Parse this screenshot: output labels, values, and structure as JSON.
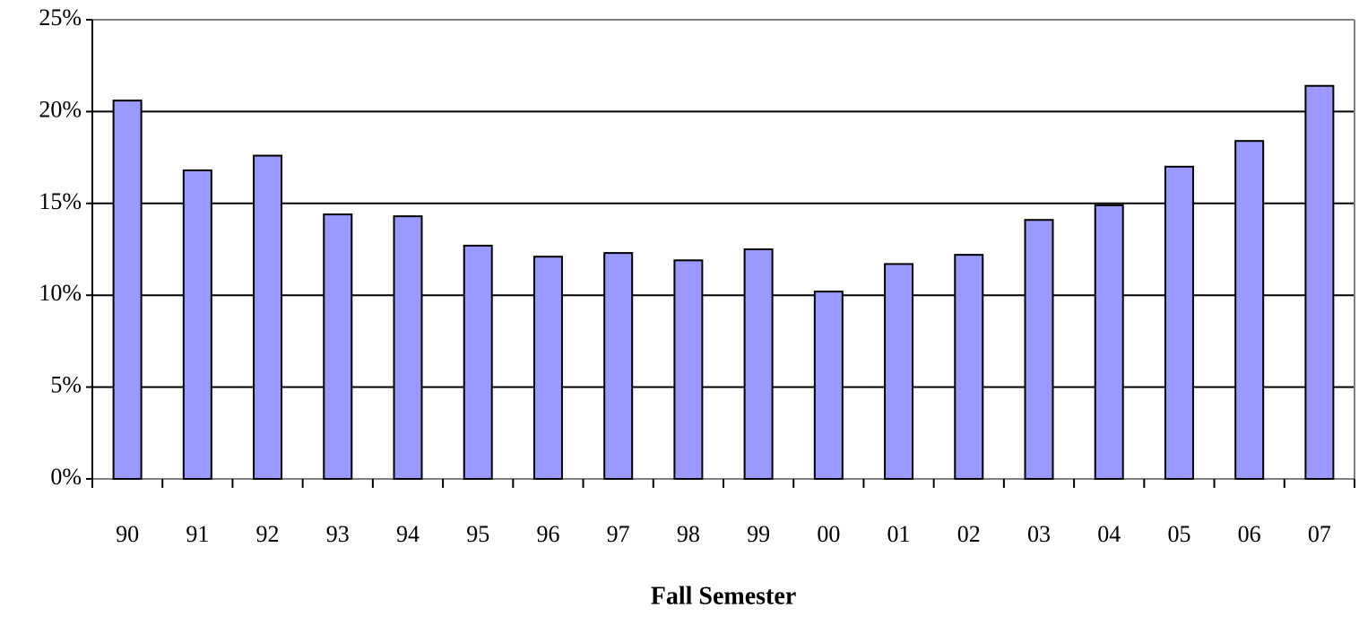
{
  "chart_data": {
    "type": "bar",
    "x_label": "Fall Semester",
    "categories": [
      "90",
      "91",
      "92",
      "93",
      "94",
      "95",
      "96",
      "97",
      "98",
      "99",
      "00",
      "01",
      "02",
      "03",
      "04",
      "05",
      "06",
      "07"
    ],
    "values": [
      20.6,
      16.8,
      17.6,
      14.4,
      14.3,
      12.7,
      12.1,
      12.3,
      11.9,
      12.5,
      10.2,
      11.7,
      12.2,
      14.1,
      14.9,
      17.0,
      18.4,
      21.4
    ],
    "color": "#9999ff",
    "ylim": [
      0,
      25
    ],
    "yticks": [
      {
        "value": 0,
        "label": "0%"
      },
      {
        "value": 5,
        "label": "5%"
      },
      {
        "value": 10,
        "label": "10%"
      },
      {
        "value": 15,
        "label": "15%"
      },
      {
        "value": 20,
        "label": "20%"
      },
      {
        "value": 25,
        "label": "25%"
      }
    ],
    "grid": true
  }
}
